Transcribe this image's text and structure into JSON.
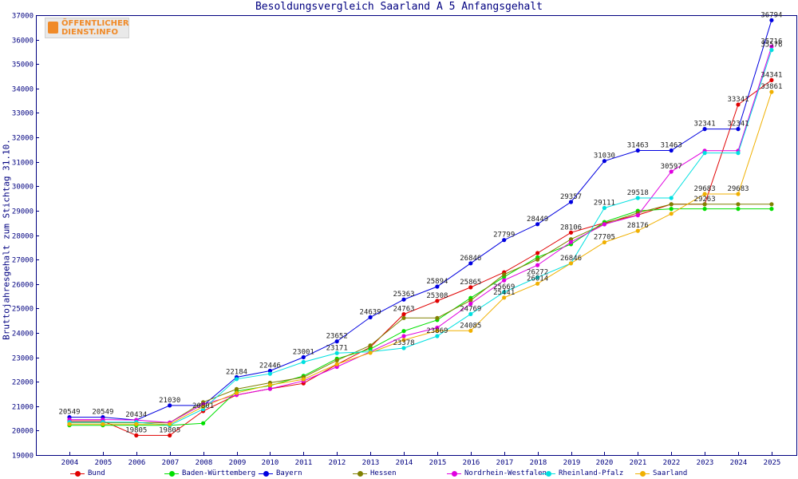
{
  "logo": {
    "line1": "ÖFFENTLICHER",
    "line2": "DIENST.INFO",
    "brand_color": "#f08a28"
  },
  "chart_data": {
    "type": "line",
    "title": "Besoldungsvergleich Saarland A 5 Anfangsgehalt",
    "xlabel": "",
    "ylabel": "Bruttojahresgehalt zum Stichtag 31.10.",
    "x": [
      "2004",
      "2005",
      "2006",
      "2007",
      "2008",
      "2009",
      "2010",
      "2011",
      "2012",
      "2013",
      "2014",
      "2015",
      "2016",
      "2017",
      "2018",
      "2019",
      "2020",
      "2021",
      "2022",
      "2023",
      "2024",
      "2025"
    ],
    "ylim": [
      19000,
      37000
    ],
    "yticks": [
      19000,
      20000,
      21000,
      22000,
      23000,
      24000,
      25000,
      26000,
      27000,
      28000,
      29000,
      30000,
      31000,
      32000,
      33000,
      34000,
      35000,
      36000,
      37000
    ],
    "grid": false,
    "legend_position": "bottom",
    "series": [
      {
        "name": "Bund",
        "color": "#e00000",
        "values": [
          20396,
          20396,
          19805,
          19805,
          20801,
          21461,
          21711,
          21932,
          22704,
          23413,
          24763,
          25308,
          25865,
          26479,
          27264,
          28106,
          28504,
          28821,
          29263,
          29263,
          33341,
          34341
        ],
        "labels": [
          "",
          "",
          "19805",
          "19805",
          "20801",
          "",
          "",
          "",
          "",
          "",
          "24763",
          "25308",
          "25865",
          "",
          "",
          "28106",
          "",
          "",
          "",
          "29263",
          "33341",
          "34341"
        ]
      },
      {
        "name": "Baden-Württemberg",
        "color": "#00e000",
        "values": [
          20219,
          20219,
          20219,
          20219,
          20301,
          21613,
          21838,
          22239,
          22944,
          23339,
          24074,
          24527,
          25428,
          26289,
          27093,
          27629,
          28536,
          28994,
          29074,
          29074,
          29074,
          29074
        ],
        "labels": []
      },
      {
        "name": "Bayern",
        "color": "#0000e0",
        "values": [
          20549,
          20549,
          20434,
          21030,
          21030,
          22184,
          22446,
          23001,
          23652,
          24639,
          25363,
          25894,
          26846,
          27799,
          28449,
          29357,
          31030,
          31463,
          31463,
          32341,
          32341,
          36794
        ],
        "labels": [
          "20549",
          "20549",
          "20434",
          "21030",
          "",
          "22184",
          "22446",
          "23001",
          "23652",
          "24639",
          "25363",
          "25894",
          "26846",
          "27799",
          "28449",
          "29357",
          "31030",
          "31463",
          "31463",
          "32341",
          "32341",
          "36794"
        ]
      },
      {
        "name": "Hessen",
        "color": "#808000",
        "values": [
          20326,
          20326,
          20326,
          20326,
          21163,
          21697,
          21957,
          22183,
          22874,
          23484,
          24609,
          24609,
          25328,
          26389,
          26996,
          27829,
          28460,
          28913,
          29263,
          29263,
          29263,
          29263
        ],
        "labels": []
      },
      {
        "name": "Nordrhein-Westfalen",
        "color": "#e000e0",
        "values": [
          20449,
          20449,
          20434,
          20326,
          21081,
          21461,
          21711,
          22030,
          22611,
          23226,
          23866,
          24212,
          25193,
          26150,
          26772,
          27715,
          28440,
          28813,
          30597,
          31454,
          31454,
          35716
        ],
        "labels": [
          "",
          "",
          "",
          "",
          "",
          "",
          "",
          "",
          "",
          "",
          "",
          "",
          "",
          "",
          "",
          "",
          "",
          "",
          "30597",
          "",
          "",
          "35716"
        ]
      },
      {
        "name": "Rheinland-Pfalz",
        "color": "#00e0e0",
        "values": [
          20349,
          20349,
          20349,
          20220,
          20878,
          22111,
          22327,
          22807,
          23171,
          23226,
          23378,
          23869,
          24769,
          25669,
          26272,
          26846,
          29111,
          29518,
          29518,
          31362,
          31362,
          35576
        ],
        "labels": [
          "",
          "",
          "",
          "",
          "",
          "",
          "",
          "",
          "23171",
          "",
          "23378",
          "23869",
          "24769",
          "25669",
          "26272",
          "26846",
          "29111",
          "29518",
          "",
          "",
          "",
          "35576"
        ]
      },
      {
        "name": "Saarland",
        "color": "#f0b000",
        "values": [
          20266,
          20266,
          20266,
          20266,
          20982,
          21540,
          21867,
          22100,
          22719,
          23184,
          23706,
          24085,
          24085,
          25441,
          26014,
          26846,
          27705,
          28176,
          28876,
          29683,
          29683,
          33861
        ],
        "labels": [
          "",
          "",
          "",
          "",
          "",
          "",
          "",
          "",
          "",
          "",
          "",
          "",
          "24085",
          "25441",
          "26014",
          "",
          "27705",
          "28176",
          "",
          "29683",
          "29683",
          "33861"
        ]
      }
    ]
  }
}
